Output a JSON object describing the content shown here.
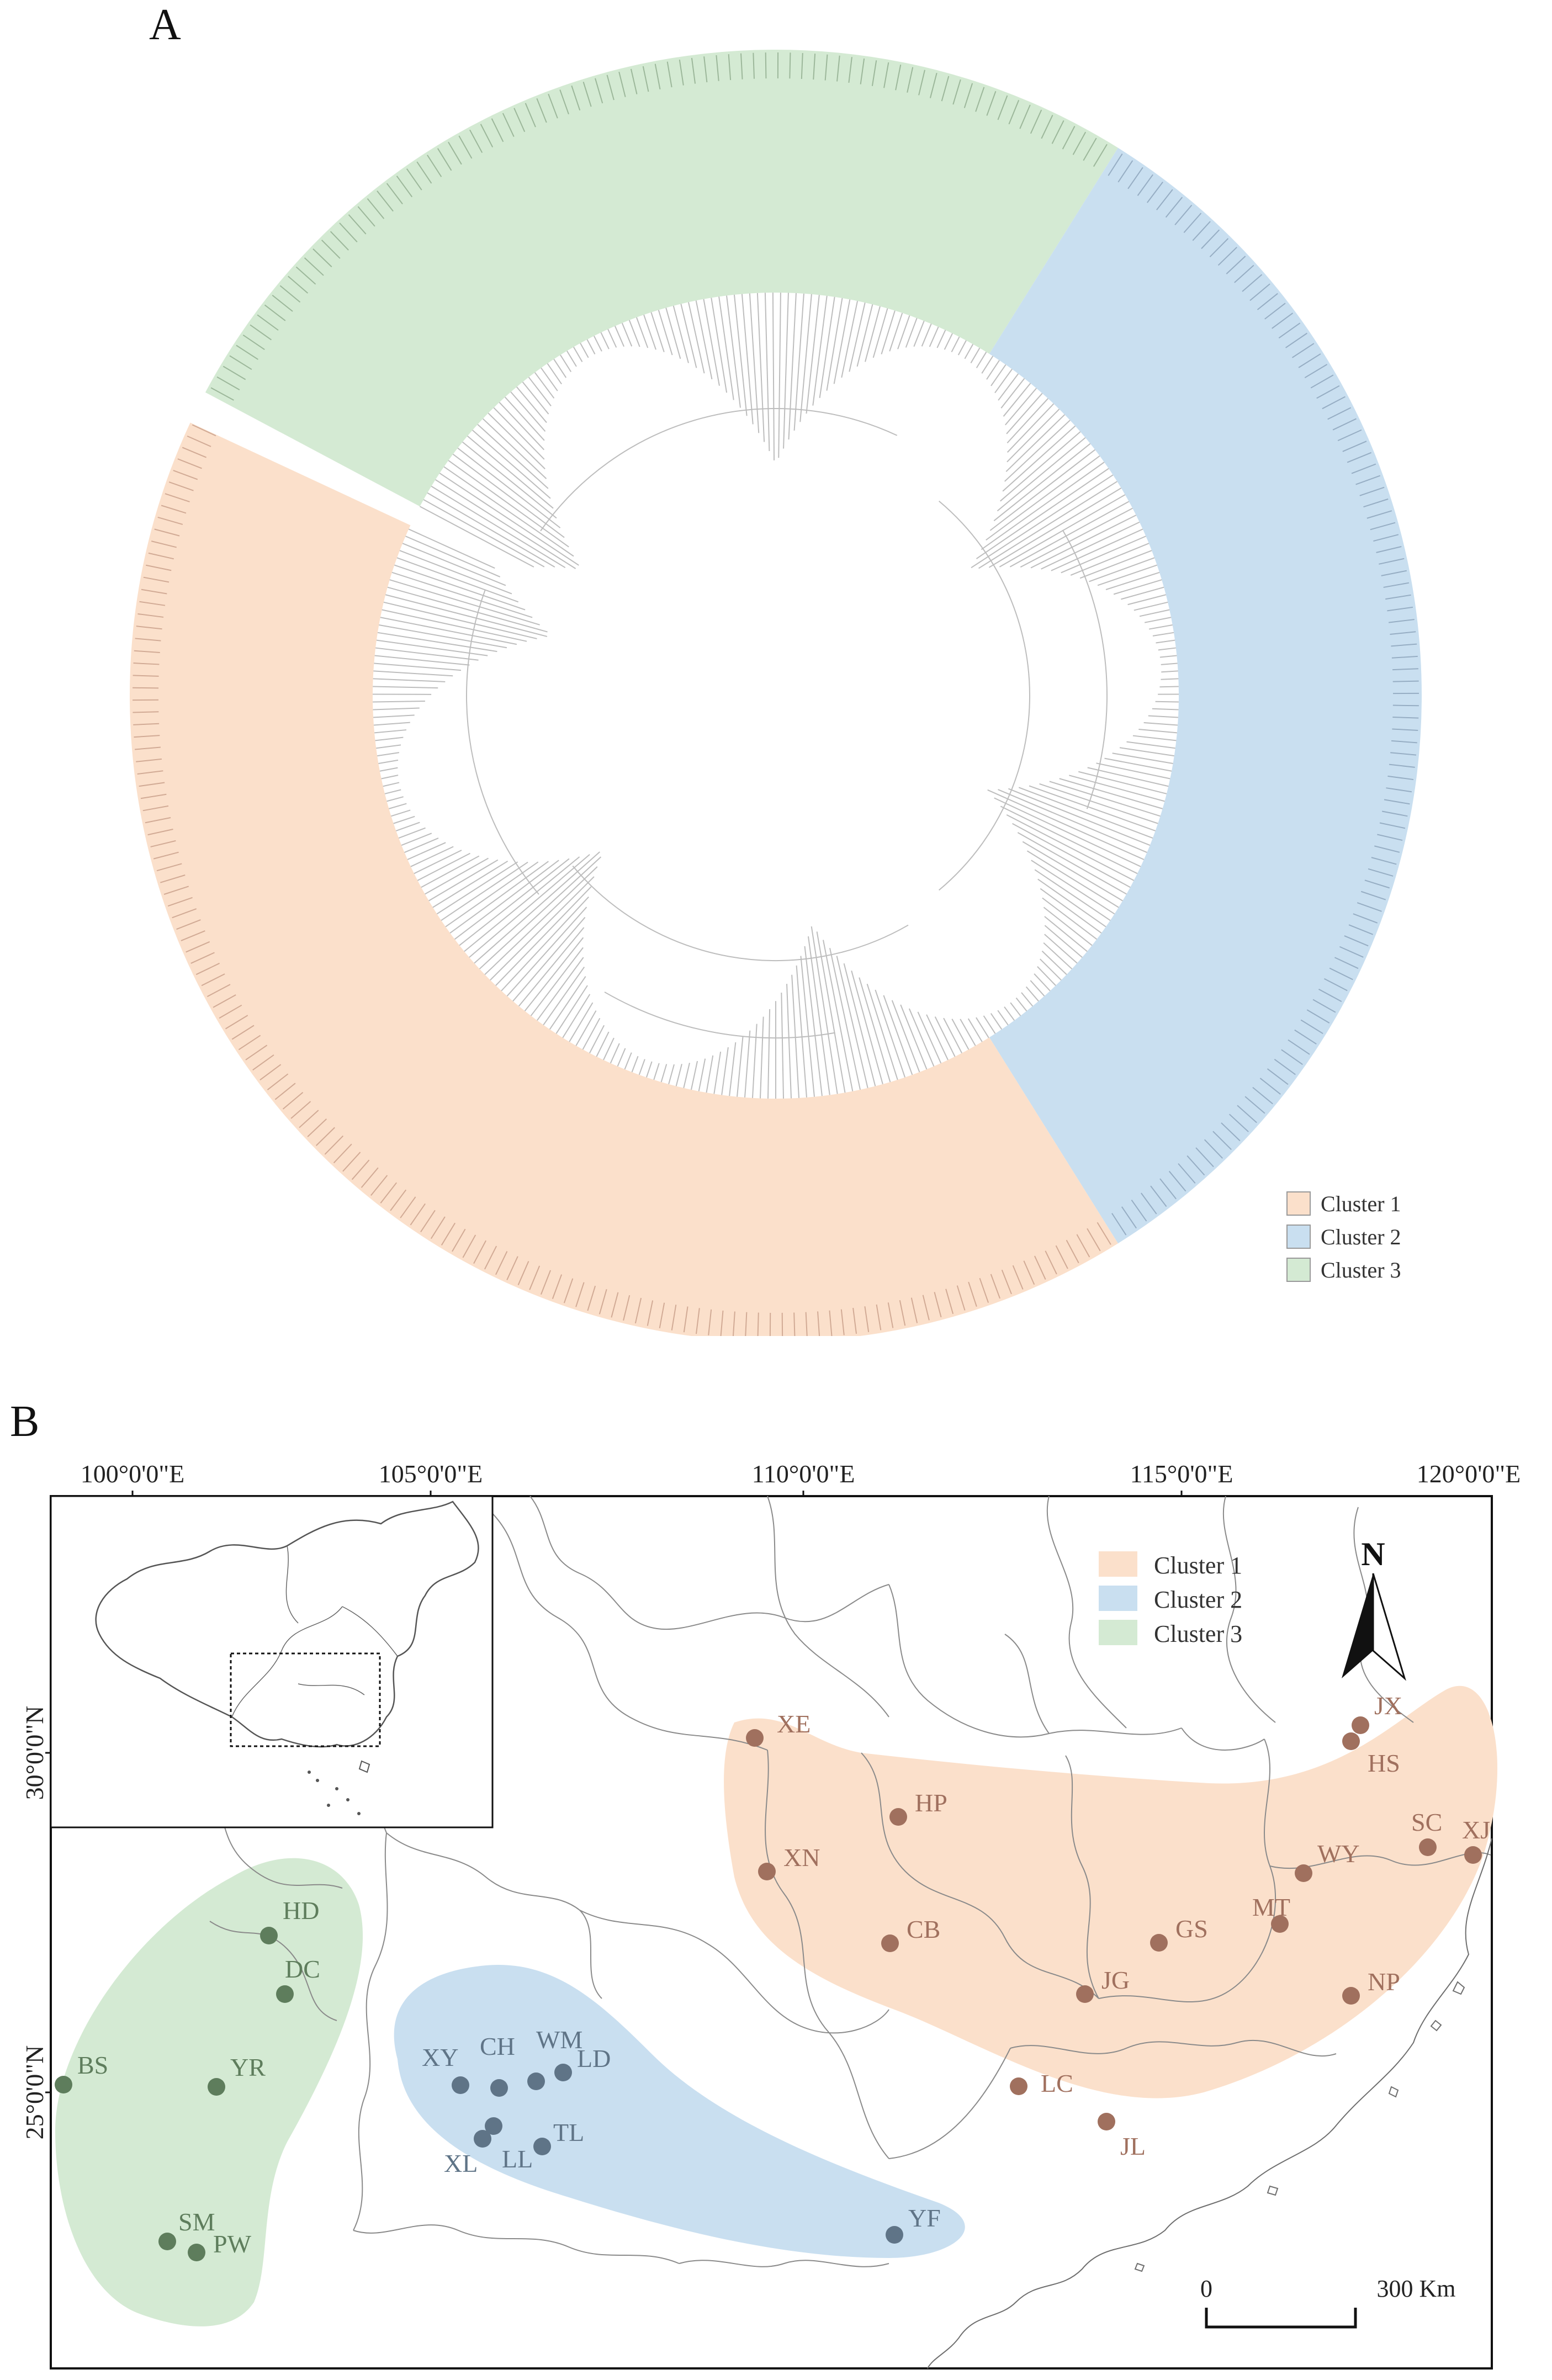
{
  "panels": {
    "a_label": "A",
    "b_label": "B"
  },
  "colors": {
    "cluster1": "#fbe0cb",
    "cluster2": "#c9dff0",
    "cluster3": "#d4ead3",
    "cluster1_dot": "#a0705e",
    "cluster2_dot": "#5f7487",
    "cluster3_dot": "#5e7d5c"
  },
  "tree": {
    "legend": [
      {
        "label": "Cluster 1",
        "color": "#fbe0cb"
      },
      {
        "label": "Cluster 2",
        "color": "#c9dff0"
      },
      {
        "label": "Cluster 3",
        "color": "#d4ead3"
      }
    ]
  },
  "map": {
    "longitude_labels": [
      "100°0'0\"E",
      "105°0'0\"E",
      "110°0'0\"E",
      "115°0'0\"E",
      "120°0'0\"E"
    ],
    "latitude_labels": [
      "30°0'0\"N",
      "25°0'0\"N"
    ],
    "legend": [
      {
        "label": "Cluster 1",
        "color": "#fbe0cb"
      },
      {
        "label": "Cluster 2",
        "color": "#c9dff0"
      },
      {
        "label": "Cluster 3",
        "color": "#d4ead3"
      }
    ],
    "north_label": "N",
    "scale_bar": {
      "zero": "0",
      "end": "300 Km"
    },
    "sites": [
      {
        "code": "XE",
        "cluster": 1
      },
      {
        "code": "HP",
        "cluster": 1
      },
      {
        "code": "XN",
        "cluster": 1
      },
      {
        "code": "CB",
        "cluster": 1
      },
      {
        "code": "JX",
        "cluster": 1
      },
      {
        "code": "HS",
        "cluster": 1
      },
      {
        "code": "SC",
        "cluster": 1
      },
      {
        "code": "XJ",
        "cluster": 1
      },
      {
        "code": "WY",
        "cluster": 1
      },
      {
        "code": "MT",
        "cluster": 1
      },
      {
        "code": "GS",
        "cluster": 1
      },
      {
        "code": "JG",
        "cluster": 1
      },
      {
        "code": "NP",
        "cluster": 1
      },
      {
        "code": "LC",
        "cluster": 1
      },
      {
        "code": "JL",
        "cluster": 1
      },
      {
        "code": "XY",
        "cluster": 2
      },
      {
        "code": "CH",
        "cluster": 2
      },
      {
        "code": "WM",
        "cluster": 2
      },
      {
        "code": "LD",
        "cluster": 2
      },
      {
        "code": "XL",
        "cluster": 2
      },
      {
        "code": "LL",
        "cluster": 2
      },
      {
        "code": "TL",
        "cluster": 2
      },
      {
        "code": "YF",
        "cluster": 2
      },
      {
        "code": "HD",
        "cluster": 3
      },
      {
        "code": "DC",
        "cluster": 3
      },
      {
        "code": "BS",
        "cluster": 3
      },
      {
        "code": "YR",
        "cluster": 3
      },
      {
        "code": "SM",
        "cluster": 3
      },
      {
        "code": "PW",
        "cluster": 3
      }
    ]
  }
}
